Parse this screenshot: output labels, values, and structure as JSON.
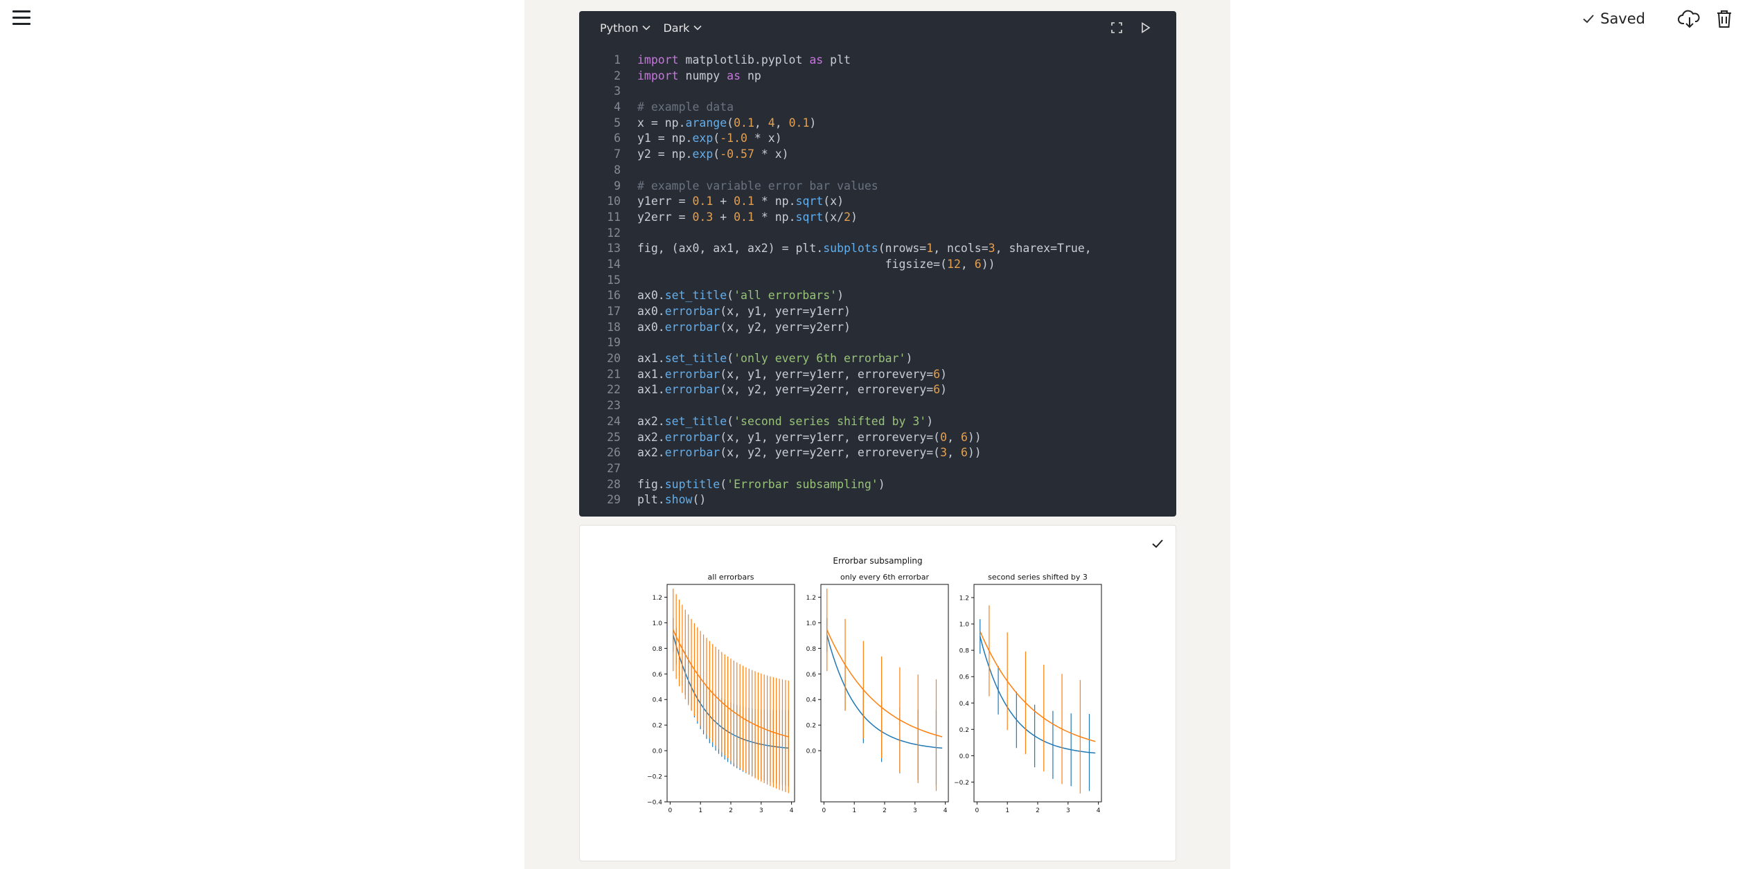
{
  "app": {
    "saved_label": "Saved",
    "icons": [
      "menu-icon",
      "check-icon",
      "cloud-download-icon",
      "trash-icon"
    ]
  },
  "editor": {
    "language": "Python",
    "theme": "Dark",
    "lines": [
      [
        [
          "kw",
          "import"
        ],
        [
          "p",
          " matplotlib.pyplot "
        ],
        [
          "kw",
          "as"
        ],
        [
          "p",
          " plt"
        ]
      ],
      [
        [
          "kw",
          "import"
        ],
        [
          "p",
          " numpy "
        ],
        [
          "kw",
          "as"
        ],
        [
          "p",
          " np"
        ]
      ],
      [],
      [
        [
          "cm",
          "# example data"
        ]
      ],
      [
        [
          "p",
          "x = np."
        ],
        [
          "fn",
          "arange"
        ],
        [
          "p",
          "("
        ],
        [
          "num",
          "0.1"
        ],
        [
          "p",
          ", "
        ],
        [
          "num",
          "4"
        ],
        [
          "p",
          ", "
        ],
        [
          "num",
          "0.1"
        ],
        [
          "p",
          ")"
        ]
      ],
      [
        [
          "p",
          "y1 = np."
        ],
        [
          "fn",
          "exp"
        ],
        [
          "p",
          "("
        ],
        [
          "num",
          "-1.0"
        ],
        [
          "p",
          " * x)"
        ]
      ],
      [
        [
          "p",
          "y2 = np."
        ],
        [
          "fn",
          "exp"
        ],
        [
          "p",
          "("
        ],
        [
          "num",
          "-0.57"
        ],
        [
          "p",
          " * x)"
        ]
      ],
      [],
      [
        [
          "cm",
          "# example variable error bar values"
        ]
      ],
      [
        [
          "p",
          "y1err = "
        ],
        [
          "num",
          "0.1"
        ],
        [
          "p",
          " + "
        ],
        [
          "num",
          "0.1"
        ],
        [
          "p",
          " * np."
        ],
        [
          "fn",
          "sqrt"
        ],
        [
          "p",
          "(x)"
        ]
      ],
      [
        [
          "p",
          "y2err = "
        ],
        [
          "num",
          "0.3"
        ],
        [
          "p",
          " + "
        ],
        [
          "num",
          "0.1"
        ],
        [
          "p",
          " * np."
        ],
        [
          "fn",
          "sqrt"
        ],
        [
          "p",
          "(x/"
        ],
        [
          "num",
          "2"
        ],
        [
          "p",
          ")"
        ]
      ],
      [],
      [
        [
          "p",
          "fig, (ax0, ax1, ax2) = plt."
        ],
        [
          "fn",
          "subplots"
        ],
        [
          "p",
          "(nrows="
        ],
        [
          "num",
          "1"
        ],
        [
          "p",
          ", ncols="
        ],
        [
          "num",
          "3"
        ],
        [
          "p",
          ", sharex=True,"
        ]
      ],
      [
        [
          "p",
          "                                    figsize=("
        ],
        [
          "num",
          "12"
        ],
        [
          "p",
          ", "
        ],
        [
          "num",
          "6"
        ],
        [
          "p",
          "))"
        ]
      ],
      [],
      [
        [
          "p",
          "ax0."
        ],
        [
          "fn",
          "set_title"
        ],
        [
          "p",
          "("
        ],
        [
          "str",
          "'all errorbars'"
        ],
        [
          "p",
          ")"
        ]
      ],
      [
        [
          "p",
          "ax0."
        ],
        [
          "fn",
          "errorbar"
        ],
        [
          "p",
          "(x, y1, yerr=y1err)"
        ]
      ],
      [
        [
          "p",
          "ax0."
        ],
        [
          "fn",
          "errorbar"
        ],
        [
          "p",
          "(x, y2, yerr=y2err)"
        ]
      ],
      [],
      [
        [
          "p",
          "ax1."
        ],
        [
          "fn",
          "set_title"
        ],
        [
          "p",
          "("
        ],
        [
          "str",
          "'only every 6th errorbar'"
        ],
        [
          "p",
          ")"
        ]
      ],
      [
        [
          "p",
          "ax1."
        ],
        [
          "fn",
          "errorbar"
        ],
        [
          "p",
          "(x, y1, yerr=y1err, errorevery="
        ],
        [
          "num",
          "6"
        ],
        [
          "p",
          ")"
        ]
      ],
      [
        [
          "p",
          "ax1."
        ],
        [
          "fn",
          "errorbar"
        ],
        [
          "p",
          "(x, y2, yerr=y2err, errorevery="
        ],
        [
          "num",
          "6"
        ],
        [
          "p",
          ")"
        ]
      ],
      [],
      [
        [
          "p",
          "ax2."
        ],
        [
          "fn",
          "set_title"
        ],
        [
          "p",
          "("
        ],
        [
          "str",
          "'second series shifted by 3'"
        ],
        [
          "p",
          ")"
        ]
      ],
      [
        [
          "p",
          "ax2."
        ],
        [
          "fn",
          "errorbar"
        ],
        [
          "p",
          "(x, y1, yerr=y1err, errorevery=("
        ],
        [
          "num",
          "0"
        ],
        [
          "p",
          ", "
        ],
        [
          "num",
          "6"
        ],
        [
          "p",
          "))"
        ]
      ],
      [
        [
          "p",
          "ax2."
        ],
        [
          "fn",
          "errorbar"
        ],
        [
          "p",
          "(x, y2, yerr=y2err, errorevery=("
        ],
        [
          "num",
          "3"
        ],
        [
          "p",
          ", "
        ],
        [
          "num",
          "6"
        ],
        [
          "p",
          "))"
        ]
      ],
      [],
      [
        [
          "p",
          "fig."
        ],
        [
          "fn",
          "suptitle"
        ],
        [
          "p",
          "("
        ],
        [
          "str",
          "'Errorbar subsampling'"
        ],
        [
          "p",
          ")"
        ]
      ],
      [
        [
          "p",
          "plt."
        ],
        [
          "fn",
          "show"
        ],
        [
          "p",
          "()"
        ]
      ]
    ]
  },
  "output": {
    "chart_data": {
      "type": "line",
      "suptitle": "Errorbar subsampling",
      "x": {
        "start": 0.1,
        "stop": 4,
        "step": 0.1
      },
      "series": [
        {
          "color": "#1f77b4",
          "y_formula": "exp(-1.0 * x)",
          "yerr_formula": "0.1 + 0.1 * sqrt(x)"
        },
        {
          "color": "#ff7f0e",
          "y_formula": "exp(-0.57 * x)",
          "yerr_formula": "0.3 + 0.1 * sqrt(x/2)"
        }
      ],
      "panels": [
        {
          "title": "all errorbars",
          "errorevery": [
            [
              0,
              1
            ],
            [
              0,
              1
            ]
          ],
          "yticks": [
            "1.2",
            "1.0",
            "0.8",
            "0.6",
            "0.4",
            "0.2",
            "0.0",
            "−0.2",
            "−0.4"
          ],
          "ytick_values": [
            1.2,
            1.0,
            0.8,
            0.6,
            0.4,
            0.2,
            0.0,
            -0.2,
            -0.4
          ],
          "ylim": [
            -0.4,
            1.3
          ],
          "xticks": [
            "0",
            "1",
            "2",
            "3",
            "4"
          ],
          "xlim": [
            -0.1,
            4.1
          ]
        },
        {
          "title": "only every 6th errorbar",
          "errorevery": [
            [
              0,
              6
            ],
            [
              0,
              6
            ]
          ],
          "yticks": [
            "1.2",
            "1.0",
            "0.8",
            "0.6",
            "0.4",
            "0.2",
            "0.0"
          ],
          "ytick_values": [
            1.2,
            1.0,
            0.8,
            0.6,
            0.4,
            0.2,
            0.0
          ],
          "ylim": [
            -0.4,
            1.3
          ],
          "xticks": [
            "0",
            "1",
            "2",
            "3",
            "4"
          ],
          "xlim": [
            -0.1,
            4.1
          ]
        },
        {
          "title": "second series shifted by 3",
          "errorevery": [
            [
              0,
              6
            ],
            [
              3,
              6
            ]
          ],
          "yticks": [
            "1.2",
            "1.0",
            "0.8",
            "0.6",
            "0.4",
            "0.2",
            "0.0",
            "−0.2"
          ],
          "ytick_values": [
            1.2,
            1.0,
            0.8,
            0.6,
            0.4,
            0.2,
            0.0,
            -0.2
          ],
          "ylim": [
            -0.35,
            1.3
          ],
          "xticks": [
            "0",
            "1",
            "2",
            "3",
            "4"
          ],
          "xlim": [
            -0.1,
            4.1
          ]
        }
      ]
    }
  }
}
